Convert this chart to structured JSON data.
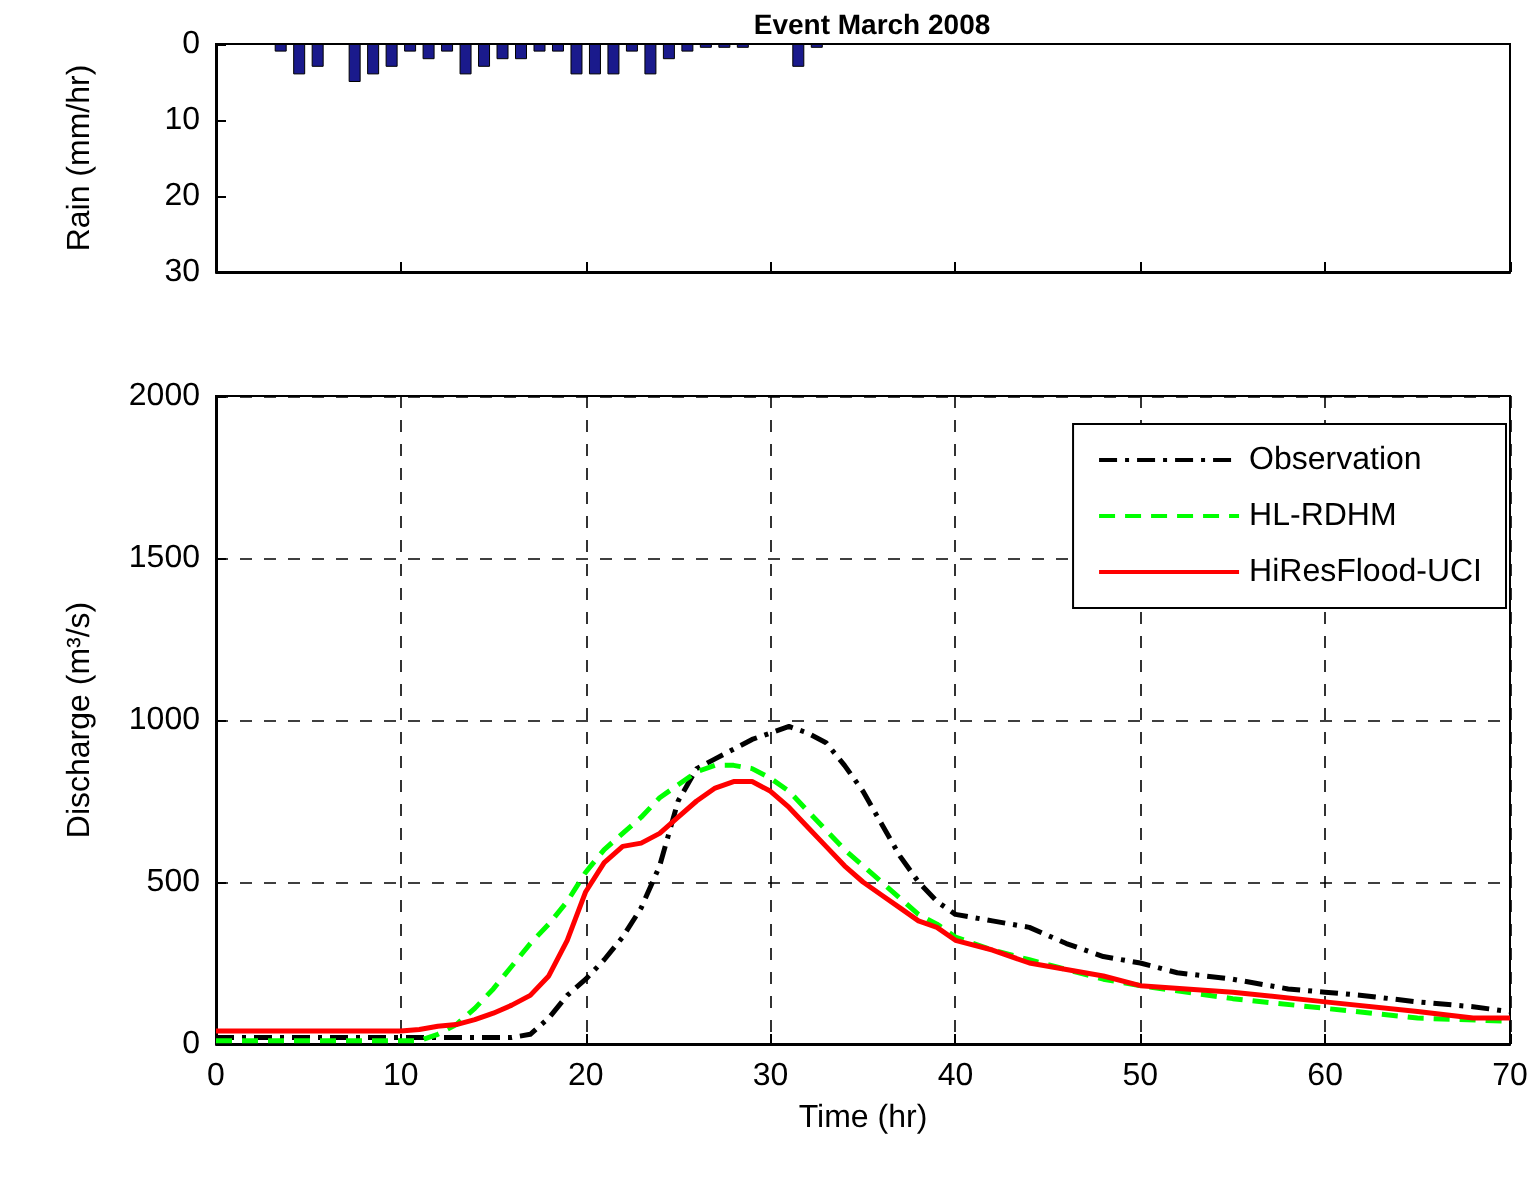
{
  "chart_data": [
    {
      "type": "bar",
      "title": "Event March 2008",
      "ylabel": "Rain (mm/hr)",
      "xlim": [
        0,
        70
      ],
      "ylim": [
        30,
        0
      ],
      "yticks": [
        0,
        10,
        20,
        30
      ],
      "tick_labels": "y",
      "grid": false,
      "legend": false,
      "x": [
        3.5,
        4.5,
        5.5,
        7.5,
        8.5,
        9.5,
        10.5,
        11.5,
        12.5,
        13.5,
        14.5,
        15.5,
        16.5,
        17.5,
        18.5,
        19.5,
        20.5,
        21.5,
        22.5,
        23.5,
        24.5,
        25.5,
        26.5,
        27.5,
        28.5,
        31.5,
        32.5
      ],
      "series": [
        {
          "color": "#1a1a8c",
          "values": [
            1,
            4,
            3,
            5,
            4,
            3,
            1,
            2,
            1,
            4,
            3,
            2,
            2,
            1,
            1,
            4,
            4,
            4,
            1,
            4,
            2,
            1,
            0.5,
            0.5,
            0.5,
            3,
            0.5
          ]
        }
      ]
    },
    {
      "type": "line",
      "xlabel": "Time (hr)",
      "ylabel": "Discharge (m³/s)",
      "xlim": [
        0,
        70
      ],
      "xticks": [
        0,
        10,
        20,
        30,
        40,
        50,
        60,
        70
      ],
      "ylim": [
        0,
        2000
      ],
      "yticks": [
        0,
        500,
        1000,
        1500,
        2000
      ],
      "grid": true,
      "legend": "top right",
      "marker": "none",
      "series": [
        {
          "name": "Observation",
          "color": "#000000",
          "line_style": "dashdot",
          "x": [
            0,
            16,
            17,
            18,
            19,
            20,
            21,
            22,
            23,
            24,
            25,
            26,
            27,
            28,
            29,
            30,
            31,
            32,
            33,
            34,
            35,
            36,
            37,
            38,
            39,
            40,
            42,
            44,
            46,
            48,
            50,
            52,
            55,
            58,
            60,
            62,
            65,
            68,
            70
          ],
          "values": [
            20,
            20,
            30,
            80,
            150,
            200,
            260,
            330,
            420,
            550,
            750,
            850,
            880,
            910,
            940,
            960,
            980,
            960,
            930,
            860,
            780,
            680,
            580,
            500,
            440,
            400,
            380,
            360,
            310,
            270,
            250,
            220,
            200,
            170,
            160,
            150,
            130,
            115,
            100
          ]
        },
        {
          "name": "HL-RDHM",
          "color": "#00ff00",
          "line_style": "dashed",
          "x": [
            0,
            11,
            12,
            13,
            14,
            15,
            16,
            17,
            18,
            19,
            20,
            21,
            22,
            23,
            24,
            25,
            26,
            27,
            28,
            29,
            30,
            31,
            32,
            33,
            34,
            35,
            36,
            37,
            38,
            39,
            40,
            42,
            44,
            46,
            48,
            50,
            55,
            60,
            65,
            70
          ],
          "values": [
            10,
            10,
            30,
            60,
            110,
            170,
            240,
            310,
            370,
            440,
            530,
            600,
            650,
            700,
            760,
            800,
            840,
            860,
            860,
            850,
            820,
            780,
            720,
            660,
            600,
            550,
            500,
            450,
            400,
            370,
            330,
            290,
            260,
            230,
            200,
            180,
            140,
            110,
            80,
            70
          ]
        },
        {
          "name": "HiResFlood-UCI",
          "color": "#ff0000",
          "line_style": "solid",
          "x": [
            0,
            10,
            11,
            12,
            13,
            14,
            15,
            16,
            17,
            18,
            19,
            20,
            21,
            22,
            23,
            24,
            25,
            26,
            27,
            28,
            29,
            30,
            31,
            32,
            33,
            34,
            35,
            36,
            37,
            38,
            39,
            40,
            42,
            44,
            46,
            48,
            50,
            55,
            60,
            65,
            68,
            70
          ],
          "values": [
            40,
            40,
            45,
            55,
            60,
            75,
            95,
            120,
            150,
            210,
            320,
            470,
            560,
            610,
            620,
            650,
            700,
            750,
            790,
            810,
            810,
            780,
            730,
            670,
            610,
            550,
            500,
            460,
            420,
            380,
            360,
            320,
            290,
            250,
            230,
            210,
            180,
            160,
            130,
            100,
            80,
            80
          ]
        }
      ]
    }
  ]
}
